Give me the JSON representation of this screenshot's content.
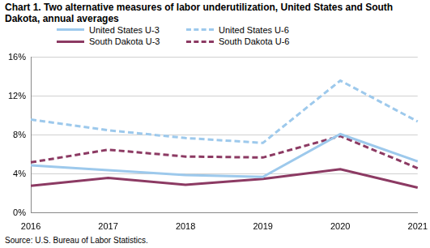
{
  "chart_data": {
    "type": "line",
    "title": "Chart 1. Two alternative measures of labor underutilization, United States and South Dakota, annual averages",
    "source": "Source: U.S. Bureau of Labor Statistics.",
    "categories": [
      "2016",
      "2017",
      "2018",
      "2019",
      "2020",
      "2021"
    ],
    "series": [
      {
        "name": "United States U-3",
        "color": "#9dc9ec",
        "line_style": "solid",
        "values": [
          4.9,
          4.4,
          3.9,
          3.7,
          8.1,
          5.3
        ]
      },
      {
        "name": "United States U-6",
        "color": "#9dc9ec",
        "line_style": "dashed",
        "values": [
          9.6,
          8.5,
          7.7,
          7.2,
          13.6,
          9.4
        ]
      },
      {
        "name": "South Dakota U-3",
        "color": "#8c3a63",
        "line_style": "solid",
        "values": [
          2.8,
          3.6,
          2.9,
          3.5,
          4.5,
          2.6
        ]
      },
      {
        "name": "South Dakota U-6",
        "color": "#8c3a63",
        "line_style": "dashed",
        "values": [
          5.2,
          6.5,
          5.8,
          5.7,
          7.9,
          4.6
        ]
      }
    ],
    "ylim": [
      0,
      16
    ],
    "yticks": [
      {
        "value": 0,
        "label": "0%"
      },
      {
        "value": 4,
        "label": "4%"
      },
      {
        "value": 8,
        "label": "8%"
      },
      {
        "value": 12,
        "label": "12%"
      },
      {
        "value": 16,
        "label": "16%"
      }
    ],
    "grid": true,
    "legend": "top",
    "marker": "none"
  }
}
